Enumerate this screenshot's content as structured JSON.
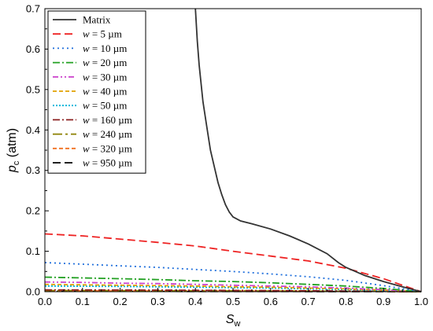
{
  "chart_data": {
    "type": "line",
    "xlabel": {
      "main": "S",
      "sub": "w"
    },
    "ylabel": {
      "main": "p",
      "sub": "c",
      "unit": " (atm)"
    },
    "xlim": [
      0,
      1
    ],
    "ylim": [
      0,
      0.7
    ],
    "xticks": [
      0.0,
      0.1,
      0.2,
      0.3,
      0.4,
      0.5,
      0.6,
      0.7,
      0.8,
      0.9,
      1.0
    ],
    "xtick_labels": [
      "0.0",
      "0.1",
      "0.2",
      "0.3",
      "0.4",
      "0.5",
      "0.6",
      "0.7",
      "0.8",
      "0.9",
      "1.0"
    ],
    "yticks": [
      0.0,
      0.1,
      0.2,
      0.3,
      0.4,
      0.5,
      0.6,
      0.7
    ],
    "ytick_labels": [
      "0.0",
      "0.1",
      "0.2",
      "0.3",
      "0.4",
      "0.5",
      "0.6",
      "0.7"
    ],
    "grid": false,
    "legend_position": "top-left",
    "series": [
      {
        "name": "Matrix",
        "color": "#333333",
        "dash": "solid",
        "x": [
          0.4,
          0.405,
          0.41,
          0.42,
          0.43,
          0.44,
          0.45,
          0.46,
          0.47,
          0.48,
          0.49,
          0.5,
          0.52,
          0.55,
          0.6,
          0.65,
          0.7,
          0.75,
          0.78,
          0.8,
          0.85,
          0.9,
          0.95,
          1.0
        ],
        "y": [
          0.7,
          0.62,
          0.56,
          0.47,
          0.41,
          0.35,
          0.31,
          0.27,
          0.24,
          0.215,
          0.197,
          0.185,
          0.175,
          0.168,
          0.155,
          0.138,
          0.118,
          0.094,
          0.072,
          0.06,
          0.04,
          0.025,
          0.012,
          0.0
        ]
      },
      {
        "name_prefix": "w",
        "name": " = 5 µm",
        "color": "#ee2222",
        "dash": "long-dash",
        "x": [
          0.0,
          0.1,
          0.2,
          0.3,
          0.4,
          0.5,
          0.6,
          0.7,
          0.8,
          0.9,
          1.0
        ],
        "y": [
          0.143,
          0.138,
          0.13,
          0.122,
          0.113,
          0.1,
          0.088,
          0.076,
          0.058,
          0.032,
          0.0
        ]
      },
      {
        "name_prefix": "w",
        "name": " = 10 µm",
        "color": "#1f6fdc",
        "dash": "dot",
        "x": [
          0.0,
          0.1,
          0.2,
          0.3,
          0.4,
          0.5,
          0.6,
          0.7,
          0.8,
          0.9,
          1.0
        ],
        "y": [
          0.072,
          0.068,
          0.064,
          0.06,
          0.055,
          0.05,
          0.044,
          0.037,
          0.028,
          0.015,
          0.0
        ]
      },
      {
        "name_prefix": "w",
        "name": " = 20 µm",
        "color": "#22a022",
        "dash": "dash-dot",
        "x": [
          0.0,
          0.1,
          0.2,
          0.3,
          0.4,
          0.5,
          0.6,
          0.7,
          0.8,
          0.9,
          1.0
        ],
        "y": [
          0.036,
          0.034,
          0.032,
          0.03,
          0.027,
          0.025,
          0.022,
          0.018,
          0.014,
          0.008,
          0.0
        ]
      },
      {
        "name_prefix": "w",
        "name": " = 30 µm",
        "color": "#cc44cc",
        "dash": "dash-dot-dot",
        "x": [
          0.0,
          0.1,
          0.2,
          0.3,
          0.4,
          0.5,
          0.6,
          0.7,
          0.8,
          0.9,
          1.0
        ],
        "y": [
          0.024,
          0.023,
          0.021,
          0.02,
          0.018,
          0.016,
          0.014,
          0.012,
          0.009,
          0.005,
          0.0
        ]
      },
      {
        "name_prefix": "w",
        "name": " = 40 µm",
        "color": "#e0a000",
        "dash": "short-dash",
        "x": [
          0.0,
          0.1,
          0.2,
          0.3,
          0.4,
          0.5,
          0.6,
          0.7,
          0.8,
          0.9,
          1.0
        ],
        "y": [
          0.018,
          0.017,
          0.016,
          0.015,
          0.014,
          0.012,
          0.011,
          0.009,
          0.007,
          0.004,
          0.0
        ]
      },
      {
        "name_prefix": "w",
        "name": " = 50 µm",
        "color": "#00b4d8",
        "dash": "short-dot",
        "x": [
          0.0,
          0.1,
          0.2,
          0.3,
          0.4,
          0.5,
          0.6,
          0.7,
          0.8,
          0.9,
          1.0
        ],
        "y": [
          0.014,
          0.0135,
          0.013,
          0.012,
          0.011,
          0.01,
          0.009,
          0.007,
          0.0055,
          0.003,
          0.0
        ]
      },
      {
        "name_prefix": "w",
        "name": " = 160 µm",
        "color": "#8b2020",
        "dash": "dash-dot",
        "x": [
          0.0,
          0.1,
          0.2,
          0.3,
          0.4,
          0.5,
          0.6,
          0.7,
          0.8,
          0.9,
          1.0
        ],
        "y": [
          0.0045,
          0.0043,
          0.004,
          0.0038,
          0.0035,
          0.0031,
          0.0028,
          0.0023,
          0.0018,
          0.001,
          0.0
        ]
      },
      {
        "name_prefix": "w",
        "name": " = 240 µm",
        "color": "#8b8000",
        "dash": "long-dash-dot",
        "x": [
          0.0,
          0.1,
          0.2,
          0.3,
          0.4,
          0.5,
          0.6,
          0.7,
          0.8,
          0.9,
          1.0
        ],
        "y": [
          0.003,
          0.0029,
          0.0027,
          0.0025,
          0.0023,
          0.0021,
          0.0018,
          0.0015,
          0.0012,
          0.0007,
          0.0
        ]
      },
      {
        "name_prefix": "w",
        "name": " = 320 µm",
        "color": "#f07020",
        "dash": "short-dash",
        "x": [
          0.0,
          0.1,
          0.2,
          0.3,
          0.4,
          0.5,
          0.6,
          0.7,
          0.8,
          0.9,
          1.0
        ],
        "y": [
          0.0022,
          0.0021,
          0.002,
          0.0019,
          0.0017,
          0.0016,
          0.0014,
          0.0011,
          0.0009,
          0.0005,
          0.0
        ]
      },
      {
        "name_prefix": "w",
        "name": " = 950 µm",
        "color": "#000000",
        "dash": "long-dash",
        "x": [
          0.0,
          0.1,
          0.2,
          0.3,
          0.4,
          0.5,
          0.6,
          0.7,
          0.8,
          0.9,
          1.0
        ],
        "y": [
          0.0008,
          0.0008,
          0.0007,
          0.0007,
          0.0006,
          0.0005,
          0.0005,
          0.0004,
          0.0003,
          0.0002,
          0.0
        ]
      }
    ]
  }
}
